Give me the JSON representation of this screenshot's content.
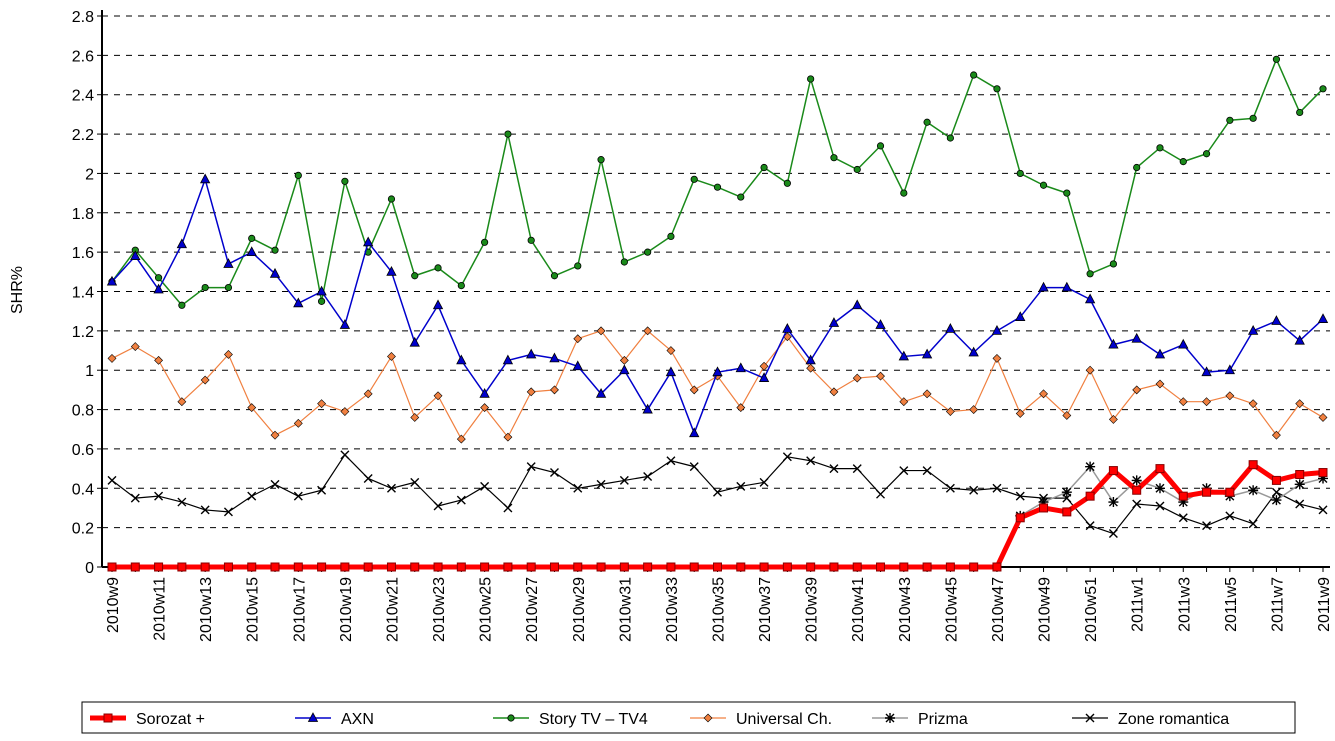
{
  "chart_data": {
    "type": "line",
    "y_label": "SHR%",
    "categories": [
      "2010w9",
      null,
      "2010w11",
      null,
      "2010w13",
      null,
      "2010w15",
      null,
      "2010w17",
      null,
      "2010w19",
      null,
      "2010w21",
      null,
      "2010w23",
      null,
      "2010w25",
      null,
      "2010w27",
      null,
      "2010w29",
      null,
      "2010w31",
      null,
      "2010w33",
      null,
      "2010w35",
      null,
      "2010w37",
      null,
      "2010w39",
      null,
      "2010w41",
      null,
      "2010w43",
      null,
      "2010w45",
      null,
      "2010w47",
      null,
      "2010w49",
      null,
      "2010w51",
      null,
      "2011w1",
      null,
      "2011w3",
      null,
      "2011w5",
      null,
      "2011w7",
      null,
      "2011w9"
    ],
    "ylim": [
      0,
      2.8
    ],
    "yticks": [
      0,
      0.2,
      0.4,
      0.6,
      0.8,
      1,
      1.2,
      1.4,
      1.6,
      1.8,
      2,
      2.2,
      2.4,
      2.6,
      2.8
    ],
    "grid": true,
    "legend": "bottom",
    "series": [
      {
        "name": "Sorozat +",
        "color": "#ff0000",
        "marker": "square",
        "width": 5,
        "values": [
          0,
          0,
          0,
          0,
          0,
          0,
          0,
          0,
          0,
          0,
          0,
          0,
          0,
          0,
          0,
          0,
          0,
          0,
          0,
          0,
          0,
          0,
          0,
          0,
          0,
          0,
          0,
          0,
          0,
          0,
          0,
          0,
          0,
          0,
          0,
          0,
          0,
          0,
          0,
          0.25,
          0.3,
          0.28,
          0.36,
          0.49,
          0.39,
          0.5,
          0.36,
          0.38,
          0.38,
          0.52,
          0.44,
          0.47,
          0.48
        ]
      },
      {
        "name": "AXN",
        "color": "#0000cc",
        "marker": "triangle",
        "width": 1.5,
        "values": [
          1.45,
          1.58,
          1.41,
          1.64,
          1.97,
          1.54,
          1.6,
          1.49,
          1.34,
          1.4,
          1.23,
          1.65,
          1.5,
          1.14,
          1.33,
          1.05,
          0.88,
          1.05,
          1.08,
          1.06,
          1.02,
          0.88,
          1.0,
          0.8,
          0.99,
          0.68,
          0.99,
          1.01,
          0.96,
          1.21,
          1.05,
          1.24,
          1.33,
          1.23,
          1.07,
          1.08,
          1.21,
          1.09,
          1.2,
          1.27,
          1.42,
          1.42,
          1.36,
          1.13,
          1.16,
          1.08,
          1.13,
          0.99,
          1.0,
          1.2,
          1.25,
          1.15,
          1.26
        ]
      },
      {
        "name": "Story TV – TV4",
        "color": "#1a8a1a",
        "marker": "circle",
        "width": 1.5,
        "values": [
          1.45,
          1.61,
          1.47,
          1.33,
          1.42,
          1.42,
          1.67,
          1.61,
          1.99,
          1.35,
          1.96,
          1.6,
          1.87,
          1.48,
          1.52,
          1.43,
          1.65,
          2.2,
          1.66,
          1.48,
          1.53,
          2.07,
          1.55,
          1.6,
          1.68,
          1.97,
          1.93,
          1.88,
          2.03,
          1.95,
          2.48,
          2.08,
          2.02,
          2.14,
          1.9,
          2.26,
          2.18,
          2.5,
          2.43,
          2.0,
          1.94,
          1.9,
          1.49,
          1.54,
          2.03,
          2.13,
          2.06,
          2.1,
          2.27,
          2.28,
          2.58,
          2.31,
          2.43
        ]
      },
      {
        "name": "Universal Ch.",
        "color": "#f08040",
        "marker": "diamond",
        "width": 1.2,
        "values": [
          1.06,
          1.12,
          1.05,
          0.84,
          0.95,
          1.08,
          0.81,
          0.67,
          0.73,
          0.83,
          0.79,
          0.88,
          1.07,
          0.76,
          0.87,
          0.65,
          0.81,
          0.66,
          0.89,
          0.9,
          1.16,
          1.2,
          1.05,
          1.2,
          1.1,
          0.9,
          0.97,
          0.81,
          1.02,
          1.17,
          1.01,
          0.89,
          0.96,
          0.97,
          0.84,
          0.88,
          0.79,
          0.8,
          1.06,
          0.78,
          0.88,
          0.77,
          1.0,
          0.75,
          0.9,
          0.93,
          0.84,
          0.84,
          0.87,
          0.83,
          0.67,
          0.83,
          0.76
        ]
      },
      {
        "name": "Prizma",
        "color": "#999999",
        "marker": "asterisk",
        "width": 1.5,
        "values": [
          null,
          null,
          null,
          null,
          null,
          null,
          null,
          null,
          null,
          null,
          null,
          null,
          null,
          null,
          null,
          null,
          null,
          null,
          null,
          null,
          null,
          null,
          null,
          null,
          null,
          null,
          null,
          null,
          null,
          null,
          null,
          null,
          null,
          null,
          null,
          null,
          null,
          null,
          null,
          0.26,
          0.33,
          0.38,
          0.51,
          0.33,
          0.44,
          0.4,
          0.33,
          0.4,
          0.36,
          0.39,
          0.34,
          0.42,
          0.45
        ]
      },
      {
        "name": "Zone romantica",
        "color": "#000000",
        "marker": "cross",
        "width": 1.2,
        "values": [
          0.44,
          0.35,
          0.36,
          0.33,
          0.29,
          0.28,
          0.36,
          0.42,
          0.36,
          0.39,
          0.57,
          0.45,
          0.4,
          0.43,
          0.31,
          0.34,
          0.41,
          0.3,
          0.51,
          0.48,
          0.4,
          0.42,
          0.44,
          0.46,
          0.54,
          0.51,
          0.38,
          0.41,
          0.43,
          0.56,
          0.54,
          0.5,
          0.5,
          0.37,
          0.49,
          0.49,
          0.4,
          0.39,
          0.4,
          0.36,
          0.35,
          0.35,
          0.21,
          0.17,
          0.32,
          0.31,
          0.25,
          0.21,
          0.26,
          0.22,
          0.38,
          0.32,
          0.29
        ]
      }
    ]
  }
}
